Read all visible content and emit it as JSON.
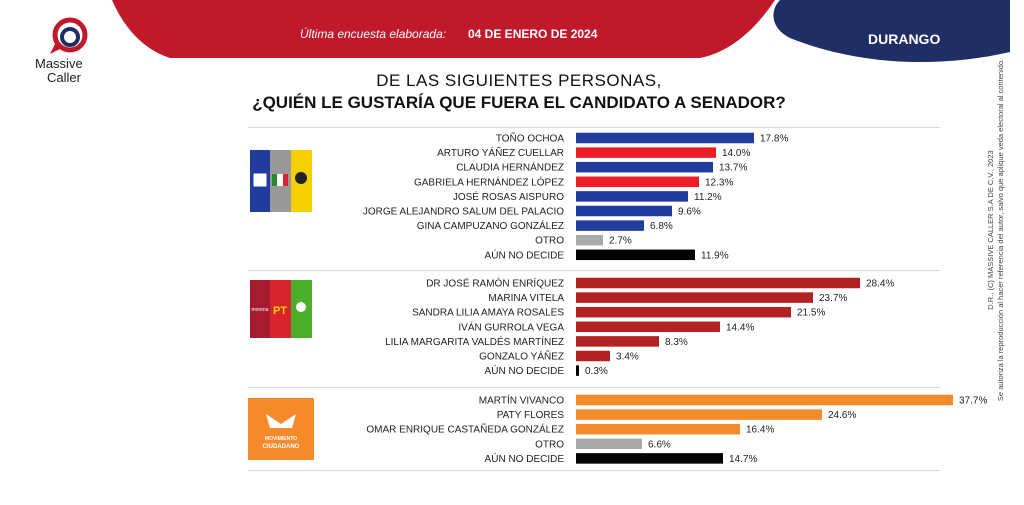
{
  "brand": {
    "name_line1": "Massive",
    "name_line2": "Caller"
  },
  "header": {
    "survey_label": "Última encuesta elaborada:",
    "survey_date": "04 DE ENERO DE 2024",
    "region": "DURANGO"
  },
  "question": {
    "line1": "DE LAS SIGUIENTES PERSONAS,",
    "line2": "¿QUIÉN LE GUSTARÍA QUE FUERA EL CANDIDATO  A SENADOR?"
  },
  "side_note": {
    "line1": "D.R., (C) MASSIVE CALLER S.A DE C.V., 2023",
    "line2": "Se autoriza la reproducción al hacer referencia del autor, salvo que aplique veda electoral al contenido."
  },
  "colors": {
    "blue": "#1f3c9e",
    "red": "#ee1c25",
    "gray": "#aaaaaa",
    "black": "#000000",
    "maroon": "#b22222",
    "orange": "#f58a2a",
    "banner_red": "#c0192c",
    "banner_navy": "#1f2f66"
  },
  "party_logos": {
    "group1": [
      "PAN",
      "PRI",
      "PRD"
    ],
    "group2": [
      "morena",
      "PT",
      "VERDE"
    ],
    "group3": [
      "MOVIMIENTO",
      "CIUDADANO"
    ]
  },
  "chart_data": {
    "type": "bar",
    "orientation": "horizontal",
    "value_suffix": "%",
    "xlim": [
      0,
      40
    ],
    "groups": [
      {
        "logo": "PAN-PRI-PRD",
        "items": [
          {
            "label": "TOÑO OCHOA",
            "value": 17.8,
            "color": "#1f3c9e"
          },
          {
            "label": "ARTURO YÁÑEZ CUELLAR",
            "value": 14.0,
            "color": "#ee1c25"
          },
          {
            "label": "CLAUDIA HERNÁNDEZ",
            "value": 13.7,
            "color": "#1f3c9e"
          },
          {
            "label": "GABRIELA HERNÁNDEZ LÓPEZ",
            "value": 12.3,
            "color": "#ee1c25"
          },
          {
            "label": "JOSÉ ROSAS AISPURO",
            "value": 11.2,
            "color": "#1f3c9e"
          },
          {
            "label": "JORGE ALEJANDRO SALUM DEL PALACIO",
            "value": 9.6,
            "color": "#1f3c9e"
          },
          {
            "label": "GINA CAMPUZANO GONZÁLEZ",
            "value": 6.8,
            "color": "#1f3c9e"
          },
          {
            "label": "OTRO",
            "value": 2.7,
            "color": "#aaaaaa"
          },
          {
            "label": "AÚN NO DECIDE",
            "value": 11.9,
            "color": "#000000"
          }
        ]
      },
      {
        "logo": "MORENA-PT-VERDE",
        "items": [
          {
            "label": "DR JOSÉ RAMÓN ENRÍQUEZ",
            "value": 28.4,
            "color": "#b22222"
          },
          {
            "label": "MARINA VITELA",
            "value": 23.7,
            "color": "#b22222"
          },
          {
            "label": "SANDRA LILIA AMAYA ROSALES",
            "value": 21.5,
            "color": "#b22222"
          },
          {
            "label": "IVÁN GURROLA VEGA",
            "value": 14.4,
            "color": "#b22222"
          },
          {
            "label": "LILIA MARGARITA VALDÉS MARTÍNEZ",
            "value": 8.3,
            "color": "#b22222"
          },
          {
            "label": "GONZALO YÁÑEZ",
            "value": 3.4,
            "color": "#b22222"
          },
          {
            "label": "AÚN NO DECIDE",
            "value": 0.3,
            "color": "#000000"
          }
        ]
      },
      {
        "logo": "MOVIMIENTO CIUDADANO",
        "items": [
          {
            "label": "MARTÍN VIVANCO",
            "value": 37.7,
            "color": "#f58a2a"
          },
          {
            "label": "PATY FLORES",
            "value": 24.6,
            "color": "#f58a2a"
          },
          {
            "label": "OMAR ENRIQUE CASTAÑEDA GONZÁLEZ",
            "value": 16.4,
            "color": "#f58a2a"
          },
          {
            "label": "OTRO",
            "value": 6.6,
            "color": "#aaaaaa"
          },
          {
            "label": "AÚN NO DECIDE",
            "value": 14.7,
            "color": "#000000"
          }
        ]
      }
    ]
  }
}
